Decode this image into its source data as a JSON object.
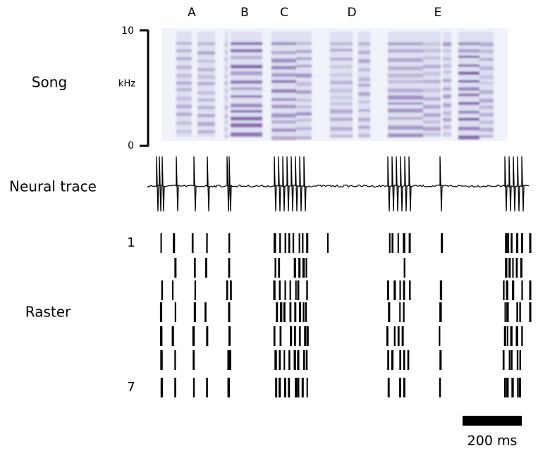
{
  "song": {
    "label": "Song",
    "syllables": [
      "A",
      "B",
      "C",
      "D",
      "E"
    ],
    "axis_top": "10",
    "axis_bottom": "0",
    "unit": "kHz"
  },
  "neural_trace": {
    "label": "Neural trace"
  },
  "raster": {
    "label": "Raster",
    "first_trial": "1",
    "last_trial": "7"
  },
  "scale_bar": {
    "label": "200 ms"
  }
}
